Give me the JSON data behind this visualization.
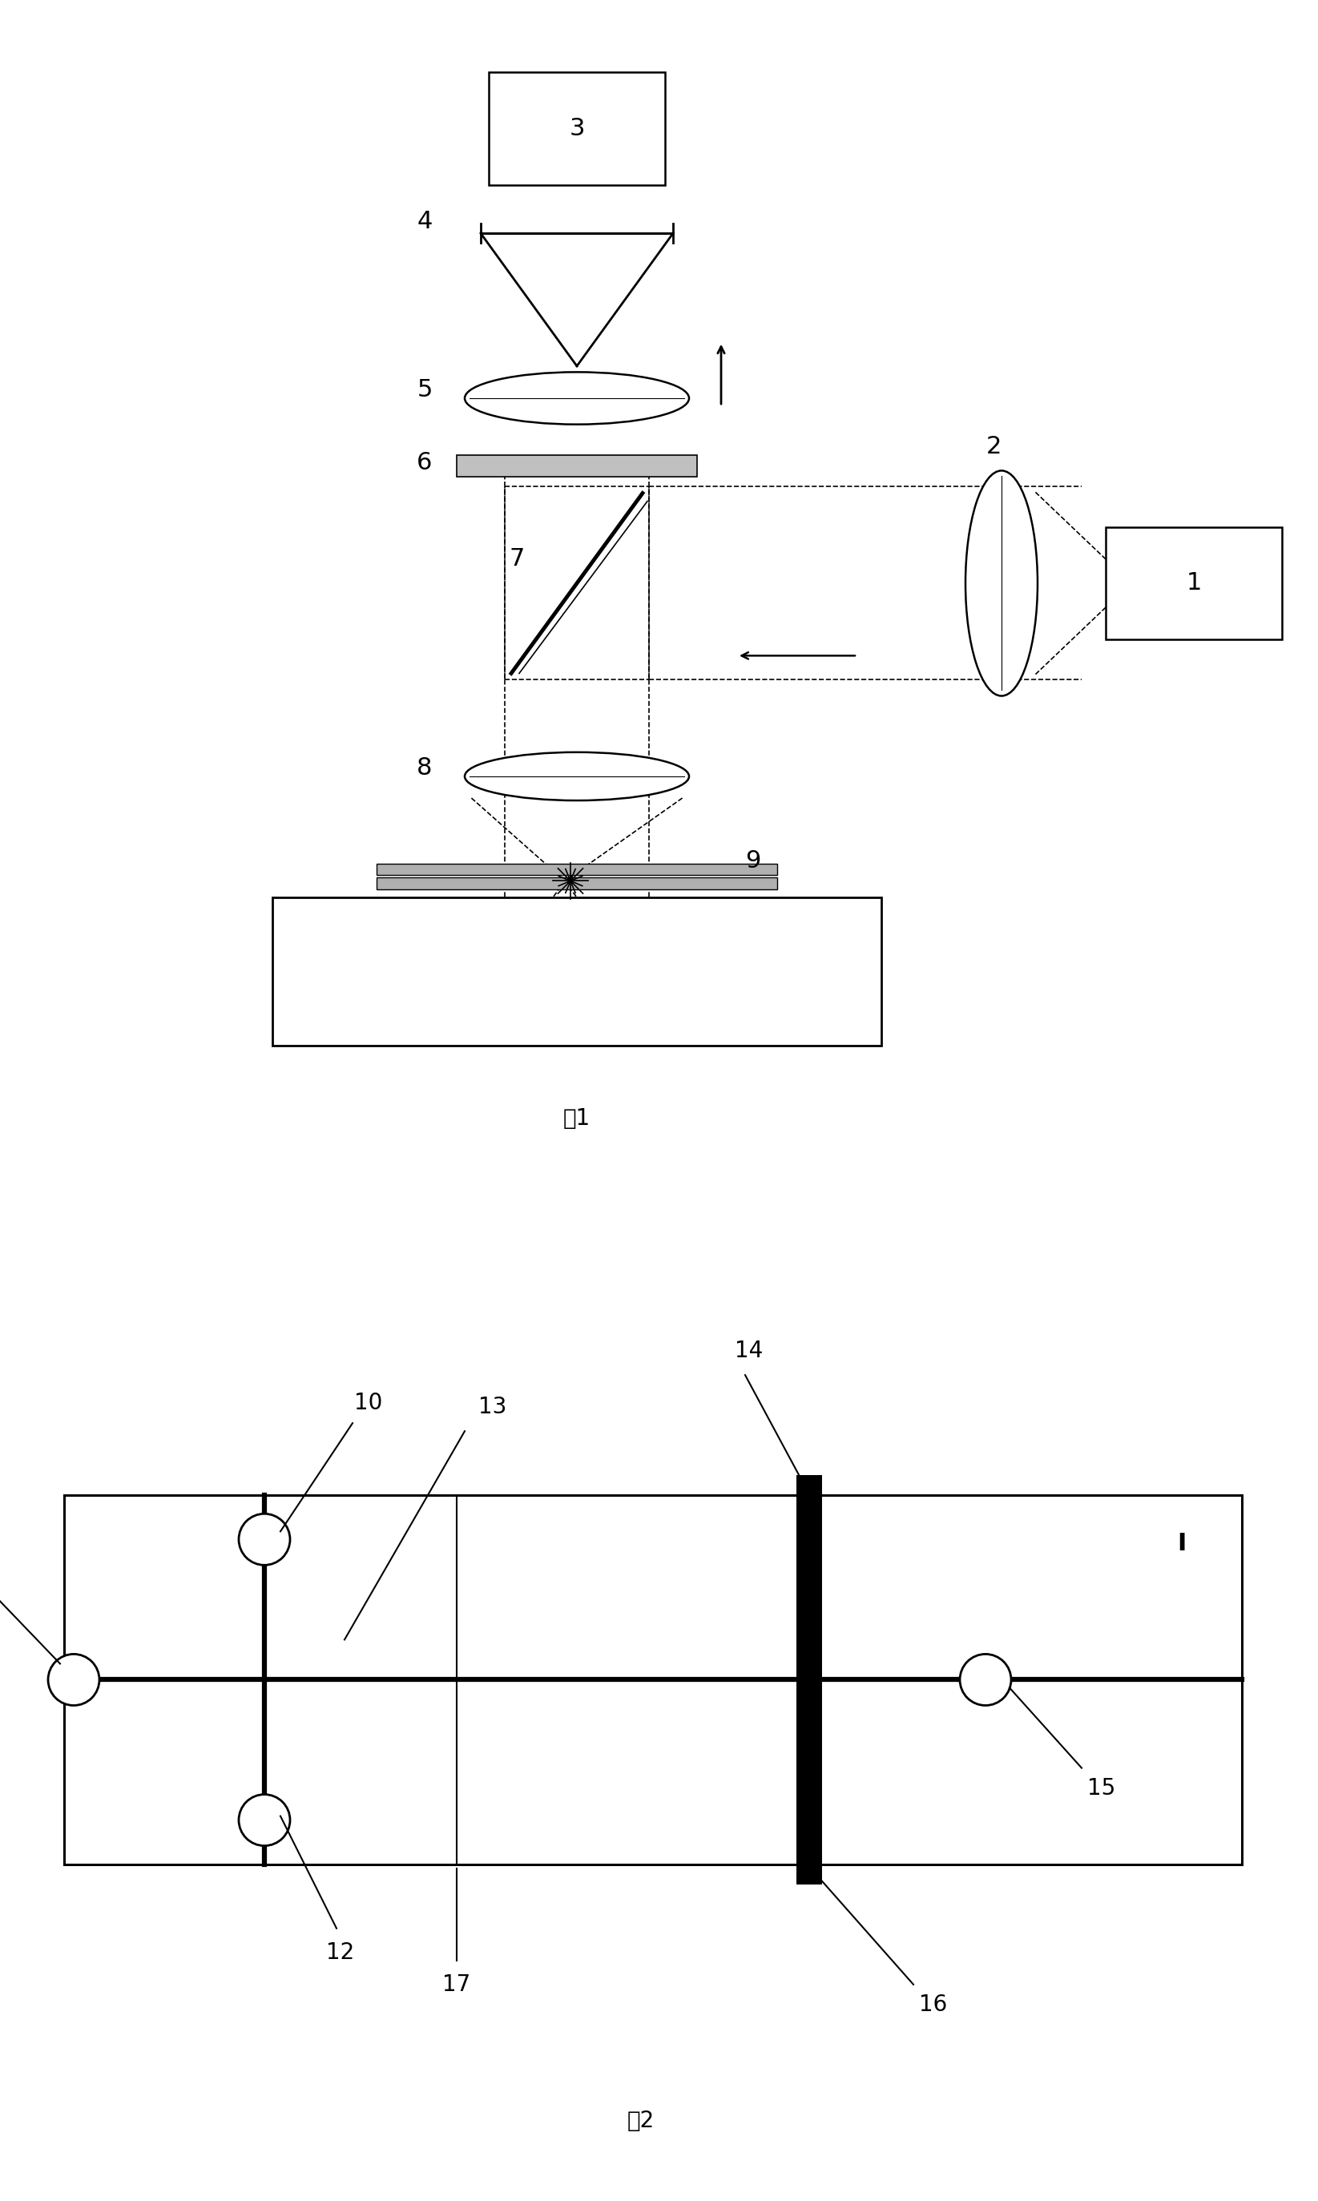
{
  "fig_width": 16.45,
  "fig_height": 27.47,
  "bg_color": "#ffffff",
  "line_color": "#000000",
  "fig1_caption": "图1",
  "fig2_caption": "图2"
}
